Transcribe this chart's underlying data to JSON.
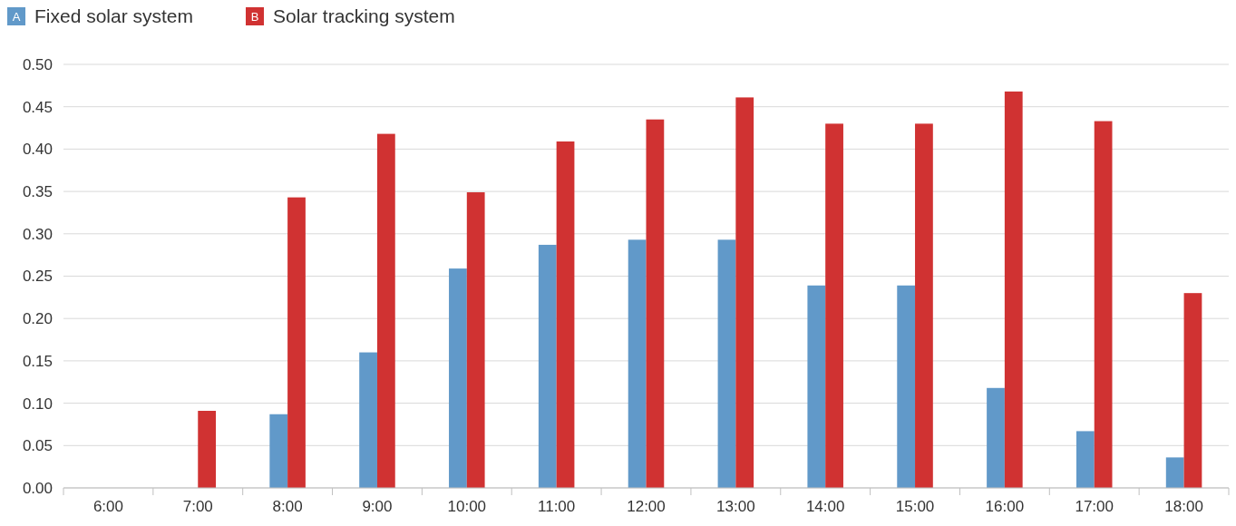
{
  "chart_data": {
    "type": "bar",
    "categories": [
      "6:00",
      "7:00",
      "8:00",
      "9:00",
      "10:00",
      "11:00",
      "12:00",
      "13:00",
      "14:00",
      "15:00",
      "16:00",
      "17:00",
      "18:00"
    ],
    "series": [
      {
        "name": "Fixed solar system",
        "color": "#6199c9",
        "values": [
          0,
          0,
          0.087,
          0.16,
          0.259,
          0.287,
          0.293,
          0.293,
          0.239,
          0.239,
          0.118,
          0.067,
          0.036
        ]
      },
      {
        "name": "Solar tracking system",
        "color": "#d03232",
        "values": [
          0,
          0.091,
          0.343,
          0.418,
          0.349,
          0.409,
          0.435,
          0.461,
          0.43,
          0.43,
          0.468,
          0.433,
          0.23
        ]
      }
    ],
    "annotations": [
      "A",
      "B"
    ],
    "ylim": [
      0,
      0.5
    ],
    "yticks": [
      {
        "value": 0,
        "label": "0.00"
      },
      {
        "value": 0.05,
        "label": "0.05"
      },
      {
        "value": 0.1,
        "label": "0.10"
      },
      {
        "value": 0.15,
        "label": "0.15"
      },
      {
        "value": 0.2,
        "label": "0.20"
      },
      {
        "value": 0.25,
        "label": "0.25"
      },
      {
        "value": 0.3,
        "label": "0.30"
      },
      {
        "value": 0.35,
        "label": "0.35"
      },
      {
        "value": 0.4,
        "label": "0.40"
      },
      {
        "value": 0.45,
        "label": "0.45"
      },
      {
        "value": 0.5,
        "label": "0.50"
      }
    ],
    "grid": "y",
    "legend": "top left"
  }
}
